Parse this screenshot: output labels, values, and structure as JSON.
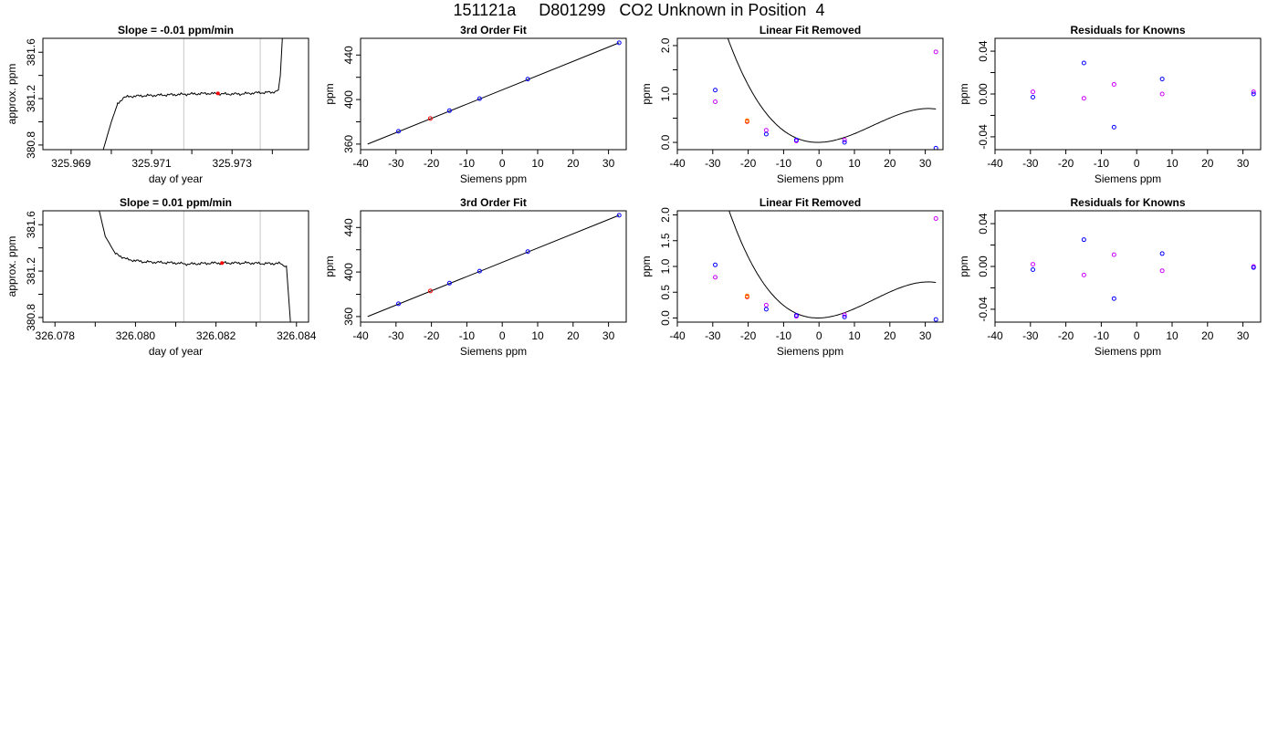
{
  "page": {
    "title": "151121a     D801299   CO2 Unknown in Position  4"
  },
  "chart_data": [
    {
      "type": "line",
      "panel": "row1-col1",
      "title": "Slope =  -0.01  ppm/min",
      "xlabel": "day of year",
      "ylabel": "approx. ppm",
      "xlim": [
        325.9683,
        325.9749
      ],
      "ylim": [
        380.76,
        381.72
      ],
      "xticks": [
        325.969,
        325.97,
        325.971,
        325.972,
        325.973,
        325.974
      ],
      "xtick_labels": [
        "325.969",
        "",
        "325.971",
        "",
        "325.973",
        ""
      ],
      "yticks": [
        380.8,
        381.0,
        381.2,
        381.4,
        381.6
      ],
      "ytick_labels": [
        "380.8",
        "",
        "381.2",
        "",
        "381.6"
      ],
      "vlines": [
        325.9718,
        325.9737
      ],
      "trace_x": [
        325.9698,
        325.97,
        325.97015,
        325.9703,
        325.9705,
        325.9708,
        325.9712,
        325.9716,
        325.972,
        325.9724,
        325.9728,
        325.9732,
        325.9736,
        325.974,
        325.97415,
        325.9742,
        325.97425
      ],
      "trace_y": [
        380.76,
        381.0,
        381.15,
        381.21,
        381.22,
        381.225,
        381.23,
        381.235,
        381.24,
        381.245,
        381.24,
        381.24,
        381.25,
        381.255,
        381.27,
        381.4,
        381.72
      ],
      "marker": {
        "x": 325.97265,
        "y": 381.245,
        "color": "#ff0000"
      }
    },
    {
      "type": "scatter",
      "panel": "row1-col2",
      "title": "3rd Order Fit",
      "xlabel": "Siemens ppm",
      "ylabel": "ppm",
      "xlim": [
        -40,
        35
      ],
      "ylim": [
        355,
        455
      ],
      "xticks": [
        -40,
        -30,
        -20,
        -10,
        0,
        10,
        20,
        30
      ],
      "yticks": [
        360,
        380,
        400,
        420,
        440
      ],
      "ytick_labels": [
        "360",
        "",
        "400",
        "",
        "440"
      ],
      "fit_line": {
        "x": [
          -38,
          33
        ],
        "y": [
          360,
          451
        ]
      },
      "points": [
        {
          "x": -29.3,
          "y": 371.5,
          "color": "#0000ff"
        },
        {
          "x": -20.3,
          "y": 383.0,
          "color": "#ff0000"
        },
        {
          "x": -14.9,
          "y": 390.0,
          "color": "#0000ff"
        },
        {
          "x": -6.4,
          "y": 400.8,
          "color": "#0000ff"
        },
        {
          "x": 7.2,
          "y": 418.3,
          "color": "#0000ff"
        },
        {
          "x": 33.0,
          "y": 451.0,
          "color": "#0000ff"
        }
      ]
    },
    {
      "type": "scatter",
      "panel": "row1-col3",
      "title": "Linear Fit Removed",
      "xlabel": "Siemens ppm",
      "ylabel": "ppm",
      "xlim": [
        -40,
        35
      ],
      "ylim": [
        -0.15,
        2.15
      ],
      "xticks": [
        -40,
        -30,
        -20,
        -10,
        0,
        10,
        20,
        30
      ],
      "yticks": [
        0.0,
        0.5,
        1.0,
        1.5,
        2.0
      ],
      "ytick_labels": [
        "0.0",
        "",
        "1.0",
        "",
        "2.0"
      ],
      "curve": {
        "a": -4.617e-05,
        "b": 0.0021124,
        "c": 0.001458,
        "d": 0.000184,
        "from": -38,
        "to": 33
      },
      "points": [
        {
          "x": -29.3,
          "y": 1.08,
          "color": "#0000ff"
        },
        {
          "x": -29.3,
          "y": 0.84,
          "color": "#cc00ff"
        },
        {
          "x": -20.3,
          "y": 0.43,
          "color": "#ff0000"
        },
        {
          "x": -20.3,
          "y": 0.45,
          "color": "#ff8800"
        },
        {
          "x": -14.9,
          "y": 0.25,
          "color": "#cc00ff"
        },
        {
          "x": -14.9,
          "y": 0.17,
          "color": "#0000ff"
        },
        {
          "x": -6.4,
          "y": 0.03,
          "color": "#cc00ff"
        },
        {
          "x": -6.4,
          "y": 0.05,
          "color": "#0000ff"
        },
        {
          "x": 7.2,
          "y": 0.05,
          "color": "#cc00ff"
        },
        {
          "x": 7.2,
          "y": 0.0,
          "color": "#0000ff"
        },
        {
          "x": 33.0,
          "y": 1.87,
          "color": "#cc00ff"
        },
        {
          "x": 33.0,
          "y": -0.12,
          "color": "#0000ff"
        }
      ]
    },
    {
      "type": "scatter",
      "panel": "row1-col4",
      "title": "Residuals for Knowns",
      "xlabel": "Siemens ppm",
      "ylabel": "ppm",
      "xlim": [
        -40,
        35
      ],
      "ylim": [
        -0.052,
        0.052
      ],
      "xticks": [
        -40,
        -30,
        -20,
        -10,
        0,
        10,
        20,
        30
      ],
      "yticks": [
        -0.04,
        -0.02,
        0.0,
        0.02,
        0.04
      ],
      "ytick_labels": [
        "-0.04",
        "",
        "0.00",
        "",
        "0.04"
      ],
      "points": [
        {
          "x": -29.3,
          "y": 0.002,
          "color": "#cc00ff"
        },
        {
          "x": -29.3,
          "y": -0.003,
          "color": "#0000ff"
        },
        {
          "x": -14.9,
          "y": 0.029,
          "color": "#0000ff"
        },
        {
          "x": -14.9,
          "y": -0.004,
          "color": "#cc00ff"
        },
        {
          "x": -6.4,
          "y": 0.009,
          "color": "#cc00ff"
        },
        {
          "x": -6.4,
          "y": -0.031,
          "color": "#0000ff"
        },
        {
          "x": 7.2,
          "y": 0.014,
          "color": "#0000ff"
        },
        {
          "x": 7.2,
          "y": 0.0,
          "color": "#cc00ff"
        },
        {
          "x": 33.0,
          "y": 0.002,
          "color": "#cc00ff"
        },
        {
          "x": 33.0,
          "y": 0.0,
          "color": "#0000ff"
        }
      ]
    },
    {
      "type": "line",
      "panel": "row2-col1",
      "title": "Slope =  0.01  ppm/min",
      "xlabel": "day of year",
      "ylabel": "approx. ppm",
      "xlim": [
        326.0777,
        326.0843
      ],
      "ylim": [
        380.76,
        381.72
      ],
      "xticks": [
        326.078,
        326.079,
        326.08,
        326.081,
        326.082,
        326.083,
        326.084
      ],
      "xtick_labels": [
        "326.078",
        "",
        "326.080",
        "",
        "326.082",
        "",
        "326.084"
      ],
      "yticks": [
        380.8,
        381.0,
        381.2,
        381.4,
        381.6
      ],
      "ytick_labels": [
        "380.8",
        "",
        "381.2",
        "",
        "381.6"
      ],
      "vlines": [
        326.0812,
        326.0831
      ],
      "trace_x": [
        326.0791,
        326.07925,
        326.0795,
        326.0798,
        326.0802,
        326.0806,
        326.081,
        326.0813,
        326.0816,
        326.082,
        326.0824,
        326.0828,
        326.0832,
        326.0836,
        326.08375,
        326.0838,
        326.08385
      ],
      "trace_y": [
        381.72,
        381.5,
        381.35,
        381.3,
        381.28,
        381.275,
        381.27,
        381.26,
        381.265,
        381.27,
        381.27,
        381.27,
        381.265,
        381.265,
        381.24,
        381.0,
        380.76
      ],
      "marker": {
        "x": 326.08215,
        "y": 381.27,
        "color": "#ff0000"
      }
    },
    {
      "type": "scatter",
      "panel": "row2-col2",
      "title": "3rd Order Fit",
      "xlabel": "Siemens ppm",
      "ylabel": "ppm",
      "xlim": [
        -40,
        35
      ],
      "ylim": [
        355,
        455
      ],
      "xticks": [
        -40,
        -30,
        -20,
        -10,
        0,
        10,
        20,
        30
      ],
      "yticks": [
        360,
        380,
        400,
        420,
        440
      ],
      "ytick_labels": [
        "360",
        "",
        "400",
        "",
        "440"
      ],
      "fit_line": {
        "x": [
          -38,
          33
        ],
        "y": [
          360,
          451
        ]
      },
      "points": [
        {
          "x": -29.3,
          "y": 371.5,
          "color": "#0000ff"
        },
        {
          "x": -20.3,
          "y": 383.0,
          "color": "#ff0000"
        },
        {
          "x": -14.9,
          "y": 390.0,
          "color": "#0000ff"
        },
        {
          "x": -6.4,
          "y": 400.8,
          "color": "#0000ff"
        },
        {
          "x": 7.2,
          "y": 418.3,
          "color": "#0000ff"
        },
        {
          "x": 33.0,
          "y": 451.0,
          "color": "#0000ff"
        }
      ]
    },
    {
      "type": "scatter",
      "panel": "row2-col3",
      "title": "Linear Fit Removed",
      "xlabel": "Siemens ppm",
      "ylabel": "ppm",
      "xlim": [
        -40,
        35
      ],
      "ylim": [
        -0.08,
        2.08
      ],
      "xticks": [
        -40,
        -30,
        -20,
        -10,
        0,
        10,
        20,
        30
      ],
      "yticks": [
        0.0,
        0.5,
        1.0,
        1.5,
        2.0
      ],
      "ytick_labels": [
        "0.0",
        "0.5",
        "1.0",
        "1.5",
        "2.0"
      ],
      "curve": {
        "a": -4.617e-05,
        "b": 0.0021124,
        "c": 0.001458,
        "d": 0.000184,
        "from": -38,
        "to": 33
      },
      "points": [
        {
          "x": -29.3,
          "y": 1.03,
          "color": "#0000ff"
        },
        {
          "x": -29.3,
          "y": 0.79,
          "color": "#cc00ff"
        },
        {
          "x": -20.3,
          "y": 0.41,
          "color": "#ff0000"
        },
        {
          "x": -20.3,
          "y": 0.43,
          "color": "#ff8800"
        },
        {
          "x": -14.9,
          "y": 0.25,
          "color": "#cc00ff"
        },
        {
          "x": -14.9,
          "y": 0.17,
          "color": "#0000ff"
        },
        {
          "x": -6.4,
          "y": 0.03,
          "color": "#cc00ff"
        },
        {
          "x": -6.4,
          "y": 0.05,
          "color": "#0000ff"
        },
        {
          "x": 7.2,
          "y": 0.06,
          "color": "#cc00ff"
        },
        {
          "x": 7.2,
          "y": 0.02,
          "color": "#0000ff"
        },
        {
          "x": 33.0,
          "y": 1.93,
          "color": "#cc00ff"
        },
        {
          "x": 33.0,
          "y": -0.03,
          "color": "#0000ff"
        }
      ]
    },
    {
      "type": "scatter",
      "panel": "row2-col4",
      "title": "Residuals for Knowns",
      "xlabel": "Siemens ppm",
      "ylabel": "ppm",
      "xlim": [
        -40,
        35
      ],
      "ylim": [
        -0.052,
        0.052
      ],
      "xticks": [
        -40,
        -30,
        -20,
        -10,
        0,
        10,
        20,
        30
      ],
      "yticks": [
        -0.04,
        -0.02,
        0.0,
        0.02,
        0.04
      ],
      "ytick_labels": [
        "-0.04",
        "",
        "0.00",
        "",
        "0.04"
      ],
      "points": [
        {
          "x": -29.3,
          "y": 0.002,
          "color": "#cc00ff"
        },
        {
          "x": -29.3,
          "y": -0.003,
          "color": "#0000ff"
        },
        {
          "x": -14.9,
          "y": 0.025,
          "color": "#0000ff"
        },
        {
          "x": -14.9,
          "y": -0.008,
          "color": "#cc00ff"
        },
        {
          "x": -6.4,
          "y": 0.011,
          "color": "#cc00ff"
        },
        {
          "x": -6.4,
          "y": -0.03,
          "color": "#0000ff"
        },
        {
          "x": 7.2,
          "y": 0.012,
          "color": "#0000ff"
        },
        {
          "x": 7.2,
          "y": -0.004,
          "color": "#cc00ff"
        },
        {
          "x": 33.0,
          "y": 0.0,
          "color": "#cc00ff"
        },
        {
          "x": 33.0,
          "y": -0.001,
          "color": "#0000ff"
        }
      ]
    }
  ]
}
